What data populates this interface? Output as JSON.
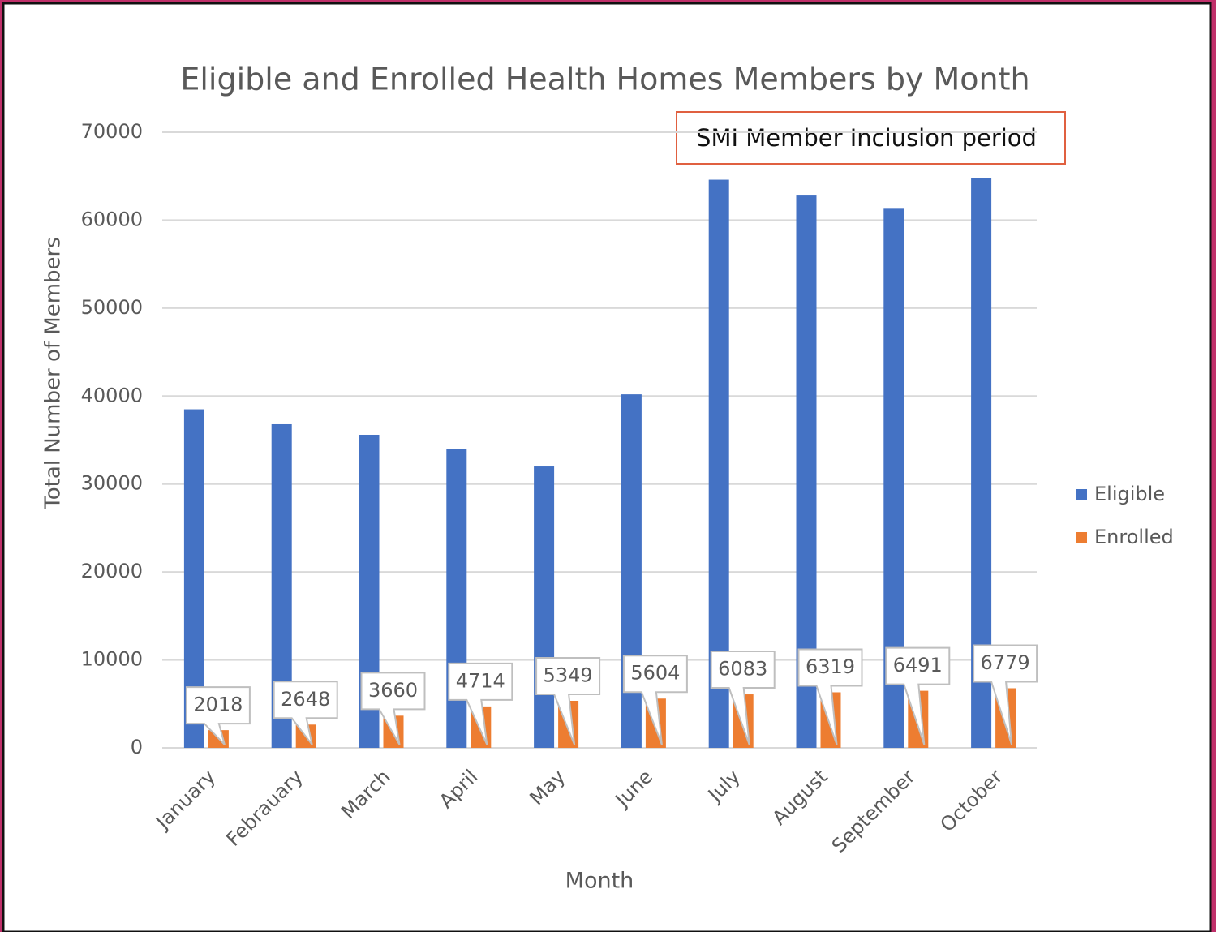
{
  "chart_data": {
    "type": "bar",
    "title": "Eligible and Enrolled Health Homes Members by Month",
    "annotation": "SMI Member Inclusion period",
    "x_label": "Month",
    "y_label": "Total Number of Members",
    "categories": [
      "January",
      "Febrauary",
      "March",
      "April",
      "May",
      "June",
      "July",
      "August",
      "September",
      "October"
    ],
    "series": [
      {
        "name": "Eligible",
        "color": "#4472c4",
        "values": [
          38500,
          36800,
          35600,
          34000,
          32000,
          40200,
          64600,
          62800,
          61300,
          64800
        ]
      },
      {
        "name": "Enrolled",
        "color": "#ed7d31",
        "values": [
          2018,
          2648,
          3660,
          4714,
          5349,
          5604,
          6083,
          6319,
          6491,
          6779
        ]
      }
    ],
    "ylim": [
      0,
      70000
    ],
    "yticks": [
      0,
      10000,
      20000,
      30000,
      40000,
      50000,
      60000,
      70000
    ],
    "grid": true,
    "legend": "right"
  }
}
